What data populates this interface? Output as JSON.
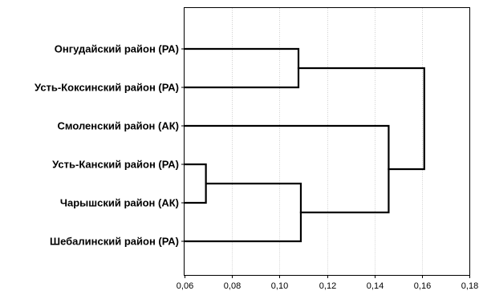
{
  "chart_data": {
    "type": "dendrogram",
    "orientation": "horizontal",
    "leaves": [
      "Онгудайский район (РА)",
      "Усть-Коксинский район (РА)",
      "Смоленский район (АК)",
      "Усть-Канский район (РА)",
      "Чарышский район (АК)",
      "Шебалинский район (РА)"
    ],
    "merges": [
      {
        "a": "leaf:3",
        "b": "leaf:4",
        "height": 0.069
      },
      {
        "a": "leaf:0",
        "b": "leaf:1",
        "height": 0.108
      },
      {
        "a": "merge:0",
        "b": "leaf:5",
        "height": 0.109
      },
      {
        "a": "leaf:2",
        "b": "merge:2",
        "height": 0.146
      },
      {
        "a": "merge:1",
        "b": "merge:3",
        "height": 0.161
      }
    ],
    "xlim": [
      0.06,
      0.18
    ],
    "xticks": [
      0.06,
      0.08,
      0.1,
      0.12,
      0.14,
      0.16,
      0.18
    ],
    "xtick_labels": [
      "0,06",
      "0,08",
      "0,10",
      "0,12",
      "0,14",
      "0,16",
      "0,18"
    ],
    "grid": "vertical-dotted",
    "title": "",
    "xlabel": "",
    "ylabel": ""
  }
}
